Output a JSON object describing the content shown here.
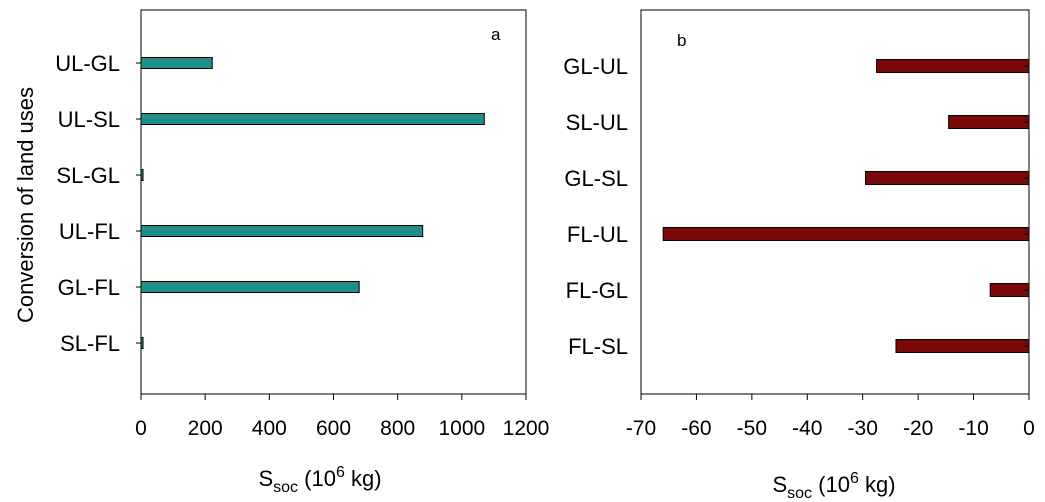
{
  "chart_data": [
    {
      "type": "bar",
      "orientation": "horizontal",
      "panel_label": "a",
      "categories": [
        "UL-GL",
        "UL-SL",
        "SL-GL",
        "UL-FL",
        "GL-FL",
        "SL-FL"
      ],
      "values": [
        222,
        1070,
        5,
        878,
        680,
        5
      ],
      "ylabel": "Conversion of land uses",
      "xlabel": "S",
      "xlabel_sub": "soc",
      "xlabel_unit_pre": " (10",
      "xlabel_sup": "6",
      "xlabel_unit_post": " kg)",
      "xlim": [
        0,
        1200
      ],
      "xticks": [
        0,
        200,
        400,
        600,
        800,
        1000,
        1200
      ],
      "color": "#1f8f8a",
      "grid": false
    },
    {
      "type": "bar",
      "orientation": "horizontal",
      "panel_label": "b",
      "categories": [
        "GL-UL",
        "SL-UL",
        "GL-SL",
        "FL-UL",
        "FL-GL",
        "FL-SL"
      ],
      "values": [
        -27.5,
        -14.5,
        -29.5,
        -66,
        -7,
        -24
      ],
      "xlabel": "S",
      "xlabel_sub": "soc",
      "xlabel_unit_pre": " (10",
      "xlabel_sup": "6",
      "xlabel_unit_post": " kg)",
      "xlim": [
        -70,
        0
      ],
      "xticks": [
        -70,
        -60,
        -50,
        -40,
        -30,
        -20,
        -10,
        0
      ],
      "color": "#7a0a0a",
      "grid": false
    }
  ]
}
